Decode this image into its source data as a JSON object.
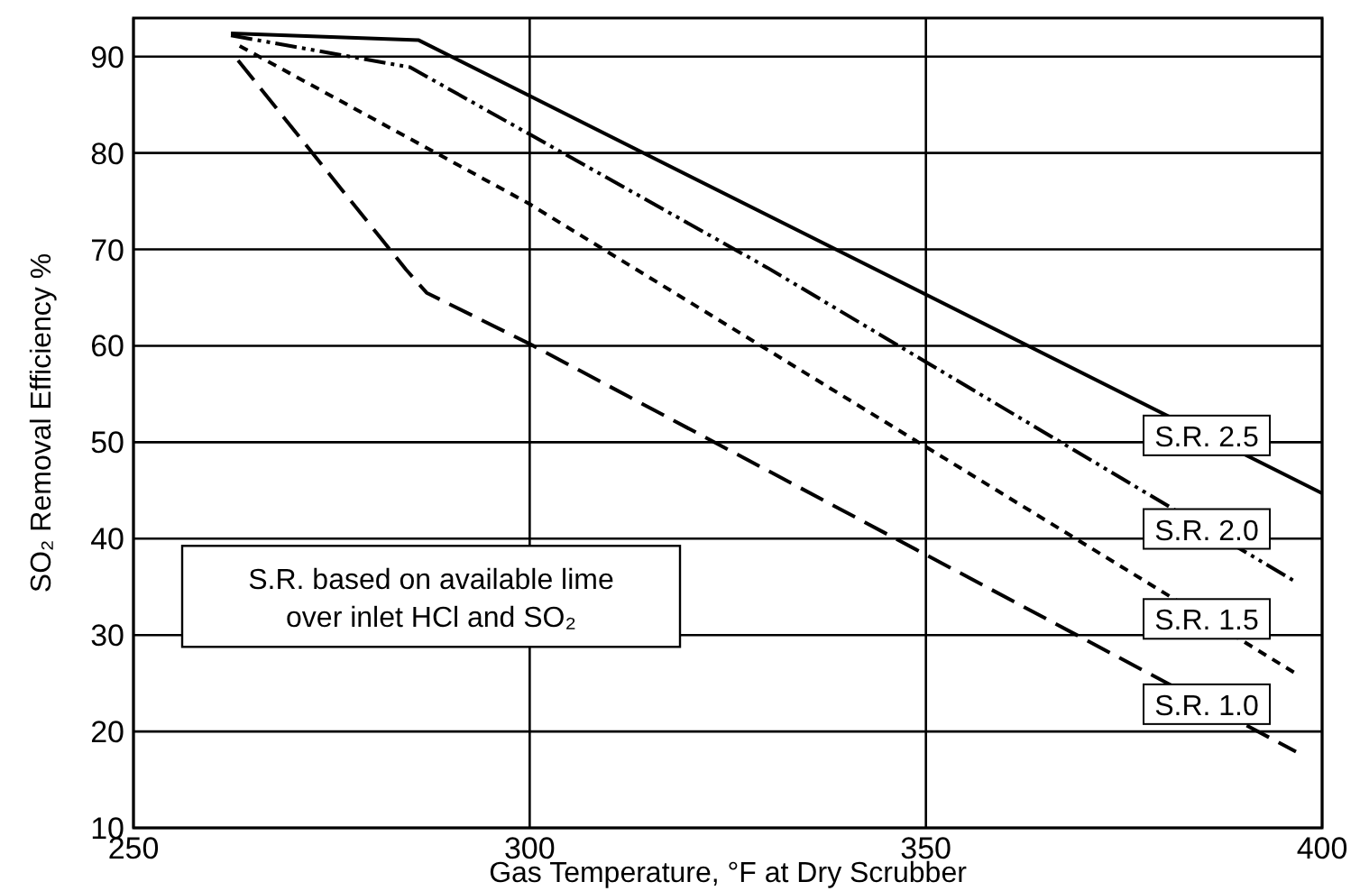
{
  "chart_data": {
    "type": "line",
    "xlabel": "Gas Temperature, °F at Dry Scrubber",
    "ylabel": "SO₂ Removal Efficiency %",
    "xlim": [
      250,
      400
    ],
    "xticks": [
      250,
      300,
      350,
      400
    ],
    "ylim": [
      10,
      94
    ],
    "yticks": [
      10,
      20,
      30,
      40,
      50,
      60,
      70,
      80,
      90
    ],
    "grid": true,
    "marker": "none",
    "series": [
      {
        "name": "S.R. 2.5",
        "color": "#000000",
        "line_style": "solid",
        "x": [
          262.3,
          286,
          400
        ],
        "values": [
          92.4,
          91.7,
          44.7
        ]
      },
      {
        "name": "S.R. 2.0",
        "color": "#000000",
        "line_style": "dashed",
        "x": [
          262.3,
          284.9,
          330,
          396.7
        ],
        "values": [
          92.2,
          88.9,
          68.1,
          35.5
        ]
      },
      {
        "name": "S.R. 1.5",
        "color": "#000000",
        "line_style": "dashed",
        "x": [
          263.4,
          299.8,
          396.7
        ],
        "values": [
          91.1,
          74.8,
          26
        ]
      },
      {
        "name": "S.R. 1.0",
        "color": "#000000",
        "line_style": "dashed",
        "x": [
          263.2,
          284.4,
          287,
          300,
          396.7
        ],
        "values": [
          89.6,
          67.9,
          65.5,
          60.2,
          17.9
        ]
      }
    ],
    "annotations": [
      "S.R. based on available lime\nover inlet HCl and SO₂"
    ]
  }
}
